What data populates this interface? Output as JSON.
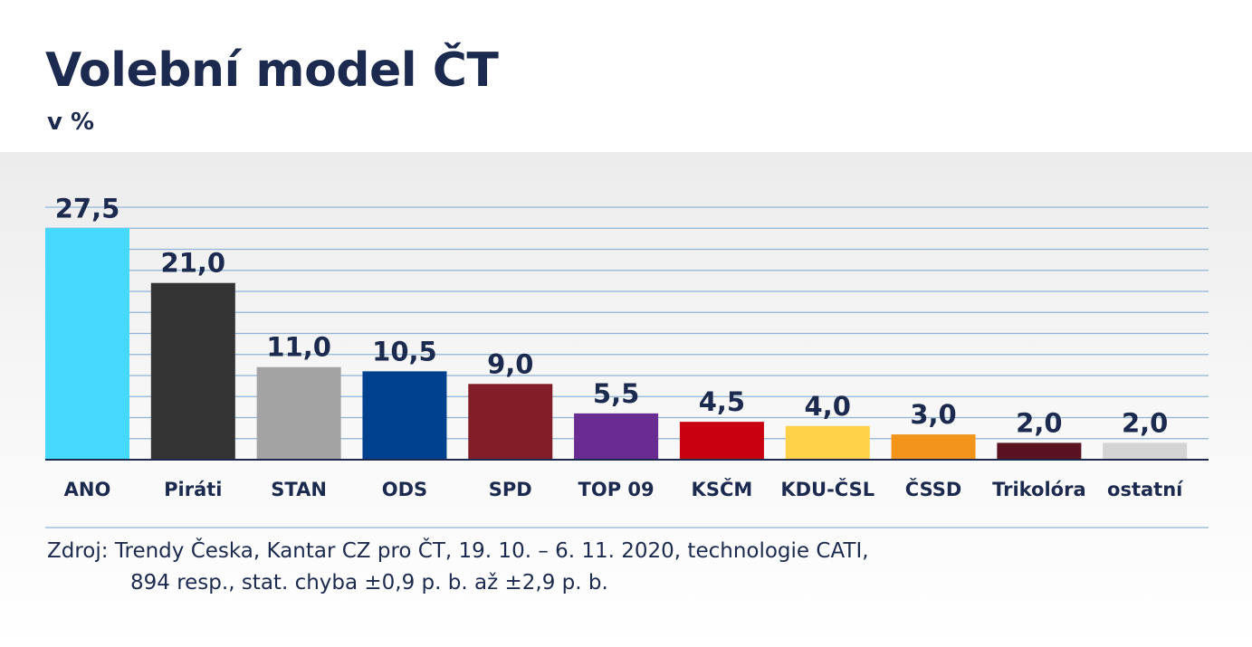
{
  "title": "Volební model ČT",
  "subtitle": "v %",
  "source": {
    "line1": "Zdroj: Trendy Česka, Kantar CZ pro ČT, 19. 10. – 6. 11. 2020, technologie CATI,",
    "line2": "894 resp., stat. chyba ±0,9 p. b. až ±2,9 p. b."
  },
  "chart_data": {
    "type": "bar",
    "categories": [
      "ANO",
      "Piráti",
      "STAN",
      "ODS",
      "SPD",
      "TOP 09",
      "KSČM",
      "KDU-ČSL",
      "ČSSD",
      "Trikolóra",
      "ostatní"
    ],
    "values": [
      27.5,
      21.0,
      11.0,
      10.5,
      9.0,
      5.5,
      4.5,
      4.0,
      3.0,
      2.0,
      2.0
    ],
    "value_labels": [
      "27,5",
      "21,0",
      "11,0",
      "10,5",
      "9,0",
      "5,5",
      "4,5",
      "4,0",
      "3,0",
      "2,0",
      "2,0"
    ],
    "colors": [
      "#45d9fd",
      "#333333",
      "#a3a3a3",
      "#00418f",
      "#821e27",
      "#6a2c91",
      "#c8000f",
      "#ffd24a",
      "#f4951b",
      "#5a1120",
      "#d4d4d4"
    ],
    "ylim": [
      0,
      30
    ],
    "grid": true,
    "grid_step": 2.5,
    "grid_color": "#8fb4d8",
    "axis_color": "#1b2a4e",
    "label_color": "#1b2a4e",
    "legend": "none"
  }
}
